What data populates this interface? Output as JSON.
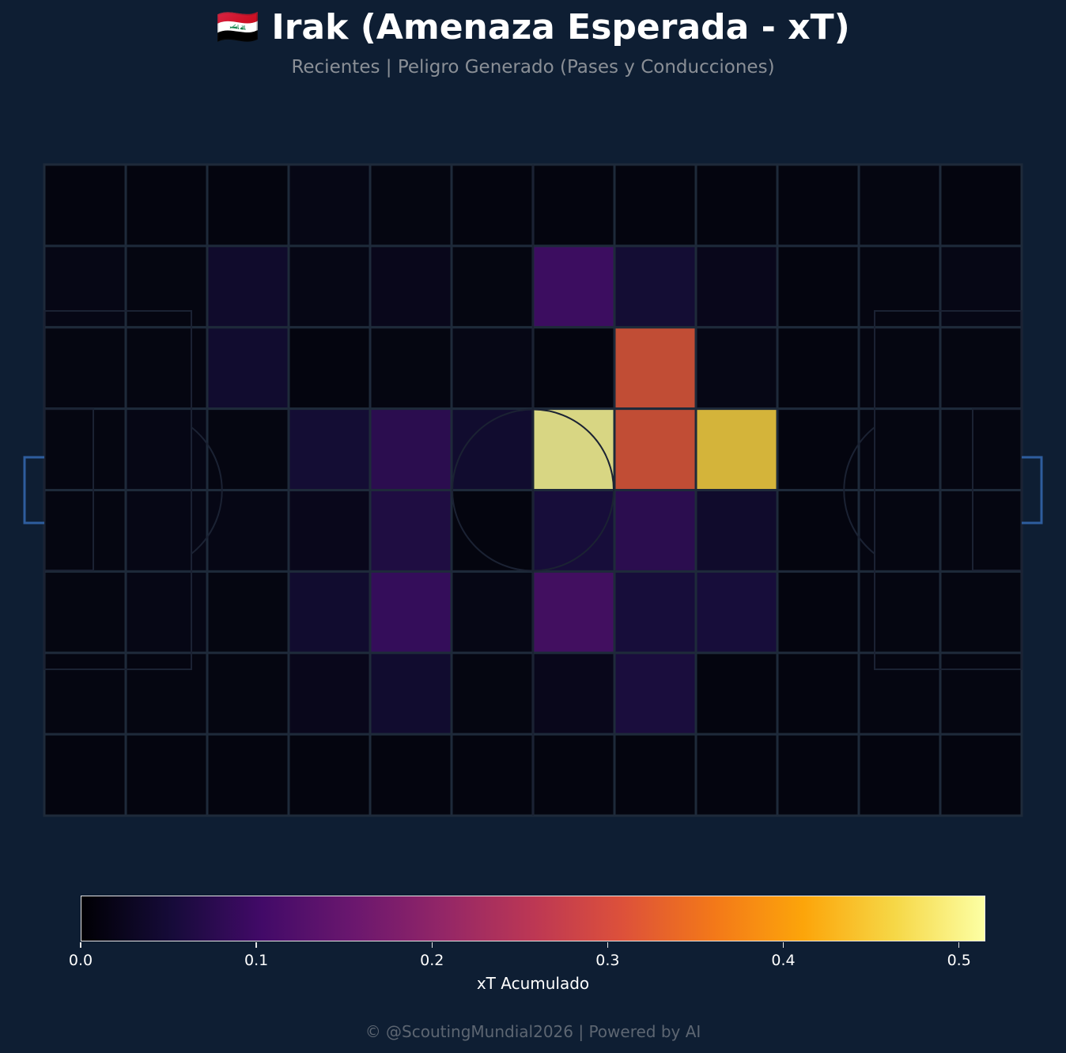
{
  "header": {
    "title": "🇮🇶 Irak (Amenaza Esperada - xT)",
    "subtitle": "Recientes | Peligro Generado (Pases y Conducciones)"
  },
  "colorbar": {
    "label": "xT Acumulado",
    "ticks": [
      "0.0",
      "0.1",
      "0.2",
      "0.3",
      "0.4",
      "0.5"
    ],
    "tick_values": [
      0,
      0.1,
      0.2,
      0.3,
      0.4,
      0.5
    ],
    "range": [
      0,
      0.515
    ],
    "colormap": "inferno"
  },
  "footer": "© @ScoutingMundial2026 | Powered by AI",
  "colors": {
    "background": "#0e1e33",
    "grid_lines": "#1e2a3a",
    "goal": "#2e5d9e"
  },
  "chart_data": {
    "type": "heatmap",
    "title": "🇮🇶 Irak (Amenaza Esperada - xT)",
    "subtitle": "Recientes | Peligro Generado (Pases y Conducciones)",
    "colorbar_label": "xT Acumulado",
    "vmin": 0,
    "vmax": 0.515,
    "columns": 12,
    "rows": 8,
    "values": [
      [
        0.005,
        0.005,
        0.005,
        0.012,
        0.008,
        0.005,
        0.005,
        0.005,
        0.005,
        0.005,
        0.008,
        0.005
      ],
      [
        0.012,
        0.008,
        0.038,
        0.012,
        0.018,
        0.008,
        0.105,
        0.048,
        0.018,
        0.005,
        0.008,
        0.012
      ],
      [
        0.008,
        0.008,
        0.042,
        0.005,
        0.008,
        0.012,
        0.005,
        0.315,
        0.012,
        0.005,
        0.008,
        0.008
      ],
      [
        0.008,
        0.012,
        0.008,
        0.048,
        0.082,
        0.042,
        0.505,
        0.315,
        0.455,
        0.005,
        0.008,
        0.008
      ],
      [
        0.008,
        0.012,
        0.012,
        0.018,
        0.065,
        0.005,
        0.055,
        0.082,
        0.038,
        0.005,
        0.008,
        0.008
      ],
      [
        0.008,
        0.012,
        0.008,
        0.042,
        0.095,
        0.012,
        0.115,
        0.055,
        0.055,
        0.005,
        0.008,
        0.008
      ],
      [
        0.008,
        0.008,
        0.008,
        0.018,
        0.042,
        0.008,
        0.018,
        0.058,
        0.005,
        0.005,
        0.008,
        0.008
      ],
      [
        0.005,
        0.005,
        0.005,
        0.005,
        0.005,
        0.005,
        0.005,
        0.005,
        0.005,
        0.005,
        0.005,
        0.005
      ]
    ],
    "grid": true,
    "legend": "none"
  }
}
